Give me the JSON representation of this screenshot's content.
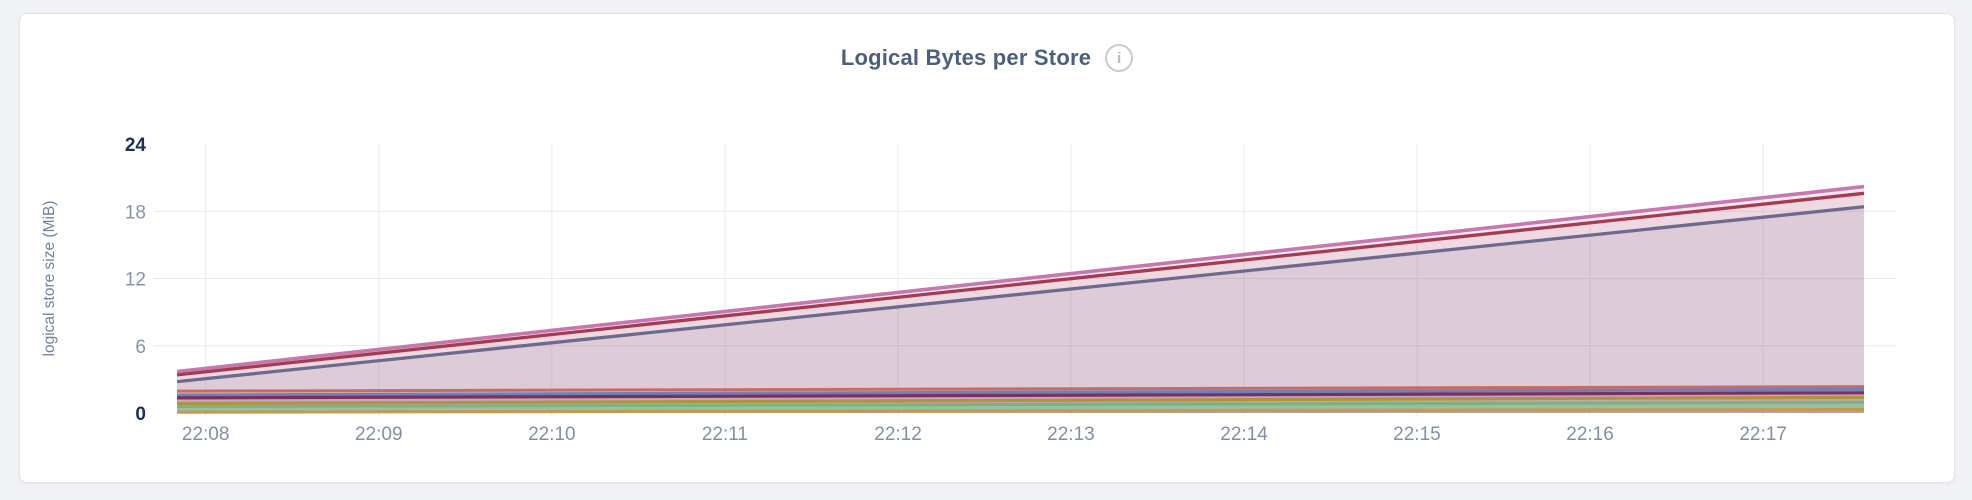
{
  "header": {
    "title": "Logical Bytes per Store",
    "info_icon_glyph": "i"
  },
  "colors": {
    "page_background": "#f1f2f5",
    "card_background": "#ffffff",
    "card_border": "#e3e4e7",
    "title_text": "#4c5f7d",
    "grid_line": "#e9e9ec",
    "ytick_regular": "#8494ac",
    "ytick_emphasis": "#1d3154",
    "xtick_text": "#7e90a8",
    "yaxis_title_text": "#6d83a0",
    "info_icon": "#c7cad0"
  },
  "chart_data": {
    "type": "area",
    "title": "Logical Bytes per Store",
    "xlabel": "",
    "ylabel": "logical store size (MiB)",
    "ylim": [
      0,
      24
    ],
    "yticks": [
      0,
      6,
      12,
      18,
      24
    ],
    "ytick_emphasis": [
      0,
      24
    ],
    "grid_yticks": [
      6,
      12,
      18
    ],
    "grid": "on",
    "legend_position": "none",
    "x_start": "22:07:50",
    "x_end": "22:17:35",
    "xticks": [
      {
        "label": "22:08",
        "f": 0.017
      },
      {
        "label": "22:09",
        "f": 0.1196
      },
      {
        "label": "22:10",
        "f": 0.2222
      },
      {
        "label": "22:11",
        "f": 0.3248
      },
      {
        "label": "22:12",
        "f": 0.4274
      },
      {
        "label": "22:13",
        "f": 0.5299
      },
      {
        "label": "22:14",
        "f": 0.6325
      },
      {
        "label": "22:15",
        "f": 0.735
      },
      {
        "label": "22:16",
        "f": 0.8376
      },
      {
        "label": "22:17",
        "f": 0.9402
      }
    ],
    "series": [
      {
        "id": "series-1",
        "color": "#c678ae",
        "start": 3.7,
        "end": 20.2,
        "fill_opacity": 0.18,
        "line_width": 3.6,
        "values_at_ticks": [
          4.0,
          5.7,
          7.4,
          9.1,
          10.8,
          12.4,
          14.1,
          15.8,
          17.5,
          19.2
        ]
      },
      {
        "id": "series-2",
        "color": "#a53b52",
        "start": 3.4,
        "end": 19.6,
        "fill_opacity": 0.08,
        "line_width": 3.3,
        "values_at_ticks": [
          3.7,
          5.3,
          7.0,
          8.7,
          10.3,
          12.0,
          13.6,
          15.3,
          17.0,
          18.6
        ]
      },
      {
        "id": "series-3",
        "color": "#6e6a8e",
        "start": 2.8,
        "end": 18.4,
        "fill_opacity": 0.13,
        "line_width": 3.3,
        "values_at_ticks": [
          3.1,
          4.7,
          6.3,
          7.9,
          9.5,
          11.1,
          12.7,
          14.3,
          15.9,
          17.5
        ]
      },
      {
        "id": "series-4",
        "color": "#cd6a60",
        "start": 1.95,
        "end": 2.35,
        "fill_opacity": 0.1,
        "line_width": 3.0,
        "values_at_ticks": [
          2.0,
          2.0,
          2.0,
          2.1,
          2.1,
          2.2,
          2.2,
          2.2,
          2.3,
          2.3
        ]
      },
      {
        "id": "series-5",
        "color": "#6c82ba",
        "start": 1.6,
        "end": 2.1,
        "fill_opacity": 0.1,
        "line_width": 3.2,
        "values_at_ticks": [
          1.6,
          1.7,
          1.7,
          1.8,
          1.8,
          1.9,
          1.9,
          2.0,
          2.0,
          2.1
        ]
      },
      {
        "id": "series-6",
        "color": "#7f2e60",
        "start": 1.35,
        "end": 1.8,
        "fill_opacity": 0.12,
        "line_width": 3.2,
        "values_at_ticks": [
          1.4,
          1.4,
          1.4,
          1.5,
          1.5,
          1.6,
          1.6,
          1.7,
          1.7,
          1.8
        ]
      },
      {
        "id": "series-7",
        "color": "#b3923f",
        "start": 0.85,
        "end": 1.4,
        "fill_opacity": 0.12,
        "line_width": 3.2,
        "values_at_ticks": [
          0.9,
          0.9,
          1.0,
          1.0,
          1.1,
          1.1,
          1.2,
          1.2,
          1.3,
          1.4
        ]
      },
      {
        "id": "series-8",
        "color": "#7ab380",
        "start": 0.55,
        "end": 0.95,
        "fill_opacity": 0.12,
        "line_width": 3.2,
        "values_at_ticks": [
          0.6,
          0.6,
          0.6,
          0.7,
          0.7,
          0.8,
          0.8,
          0.8,
          0.9,
          0.9
        ]
      },
      {
        "id": "series-9",
        "color": "#97c29e",
        "start": 0.3,
        "end": 0.65,
        "fill_opacity": 0.12,
        "line_width": 3.2,
        "values_at_ticks": [
          0.3,
          0.35,
          0.4,
          0.4,
          0.45,
          0.5,
          0.5,
          0.55,
          0.6,
          0.65
        ]
      },
      {
        "id": "series-10",
        "color": "#c69857",
        "start": 0.08,
        "end": 0.3,
        "fill_opacity": 0.12,
        "line_width": 3.2,
        "values_at_ticks": [
          0.1,
          0.1,
          0.15,
          0.15,
          0.2,
          0.2,
          0.25,
          0.25,
          0.3,
          0.3
        ]
      }
    ]
  }
}
